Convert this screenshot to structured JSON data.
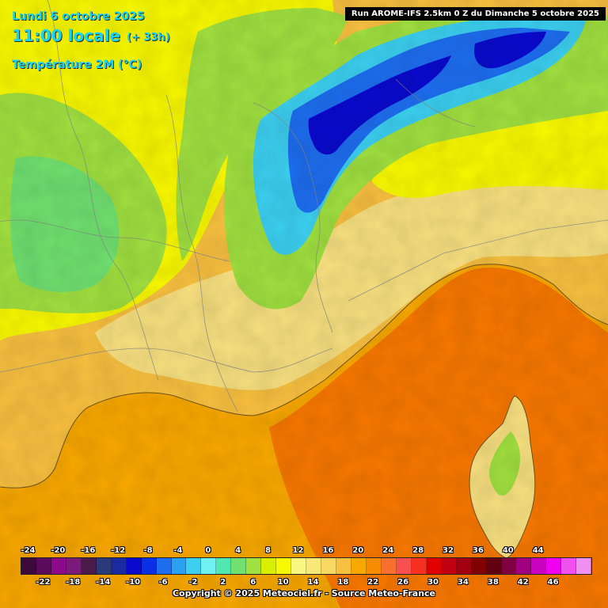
{
  "header": {
    "date": "Lundi 6 octobre 2025",
    "time": "11:00 locale",
    "offset": "(+ 33h)",
    "parameter": "Température 2M (°C)"
  },
  "run_label": "Run AROME-IFS 2.5km 0 Z du Dimanche 5 octobre 2025",
  "copyright": "Copyright © 2025 Meteociel.fr - Source Meteo-France",
  "legend": {
    "top_labels": [
      "-24",
      "-20",
      "-16",
      "-12",
      "-8",
      "-4",
      "0",
      "4",
      "8",
      "12",
      "16",
      "20",
      "24",
      "28",
      "32",
      "36",
      "40",
      "44"
    ],
    "bottom_labels": [
      "-22",
      "-18",
      "-14",
      "-10",
      "-6",
      "-2",
      "2",
      "6",
      "10",
      "14",
      "18",
      "22",
      "26",
      "30",
      "34",
      "38",
      "42",
      "46"
    ],
    "colors": [
      "#3b0a3b",
      "#5c0a5c",
      "#8a0a8a",
      "#7a1a7a",
      "#4a1a4a",
      "#2b3a7a",
      "#1a2aa0",
      "#0a0acf",
      "#0a30e6",
      "#1e6ef0",
      "#2aa0f0",
      "#3ccff0",
      "#70f0f0",
      "#50e8b0",
      "#70e070",
      "#a0e040",
      "#d8f000",
      "#f8f800",
      "#f8f880",
      "#f8e878",
      "#f8d860",
      "#f8c040",
      "#f8a800",
      "#f88c00",
      "#f87030",
      "#f85050",
      "#f83020",
      "#e00000",
      "#c00010",
      "#a00010",
      "#800000",
      "#600010",
      "#800040",
      "#a00080",
      "#c800c0",
      "#f000f0",
      "#f050f0",
      "#f090f0"
    ]
  },
  "map": {
    "colors": {
      "sea_warm": "#f87800",
      "sea_mild": "#f8a800",
      "lowland": "#f8c040",
      "plain_light": "#f8e080",
      "hills_yellow": "#f8f800",
      "hills_green": "#a0e040",
      "mid_green": "#70e070",
      "mountain_cyan": "#3ccff0",
      "mountain_blue": "#1e6ef0",
      "peak_navy": "#0a0acf",
      "coast_line": "#6a5020",
      "border_line": "#808080"
    }
  }
}
